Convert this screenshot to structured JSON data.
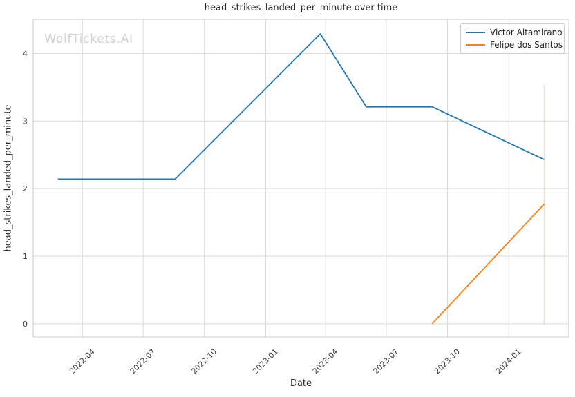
{
  "watermark": "WolfTickets.AI",
  "chart_data": {
    "type": "line",
    "title": "head_strikes_landed_per_minute over time",
    "xlabel": "Date",
    "ylabel": "head_strikes_landed_per_minute",
    "grid": true,
    "legend_position": "upper right",
    "background_color": "#ffffff",
    "grid_color": "#d9d9d9",
    "spine_color": "#cacaca",
    "tick_text_color": "#3b3b3b",
    "x_axis": {
      "range": [
        "2022-01-17",
        "2024-03-31"
      ],
      "ticks": [
        {
          "date": "2022-04-01",
          "label": "2022-04"
        },
        {
          "date": "2022-07-01",
          "label": "2022-07"
        },
        {
          "date": "2022-10-01",
          "label": "2022-10"
        },
        {
          "date": "2023-01-01",
          "label": "2023-01"
        },
        {
          "date": "2023-04-01",
          "label": "2023-04"
        },
        {
          "date": "2023-07-01",
          "label": "2023-07"
        },
        {
          "date": "2023-10-01",
          "label": "2023-10"
        },
        {
          "date": "2024-01-01",
          "label": "2024-01"
        }
      ]
    },
    "y_axis": {
      "range": [
        -0.196,
        4.505
      ],
      "ticks": [
        0,
        1,
        2,
        3,
        4
      ]
    },
    "series": [
      {
        "name": "Victor Altamirano",
        "color": "#1f77b4",
        "points": [
          {
            "date": "2022-02-23",
            "value": 2.14
          },
          {
            "date": "2022-08-18",
            "value": 2.14
          },
          {
            "date": "2023-03-24",
            "value": 4.29
          },
          {
            "date": "2023-06-01",
            "value": 3.21
          },
          {
            "date": "2023-09-08",
            "value": 3.21
          },
          {
            "date": "2024-02-23",
            "value": 2.43
          }
        ]
      },
      {
        "name": "Felipe dos Santos",
        "color": "#ff7f0e",
        "points": [
          {
            "date": "2023-09-08",
            "value": 0.0
          },
          {
            "date": "2024-02-23",
            "value": 1.77
          }
        ]
      }
    ],
    "error_bar": {
      "series": "Felipe dos Santos",
      "date": "2024-02-23",
      "from": 0.0,
      "to": 3.53,
      "color": "#ff7f0e",
      "opacity": 0.3
    }
  }
}
